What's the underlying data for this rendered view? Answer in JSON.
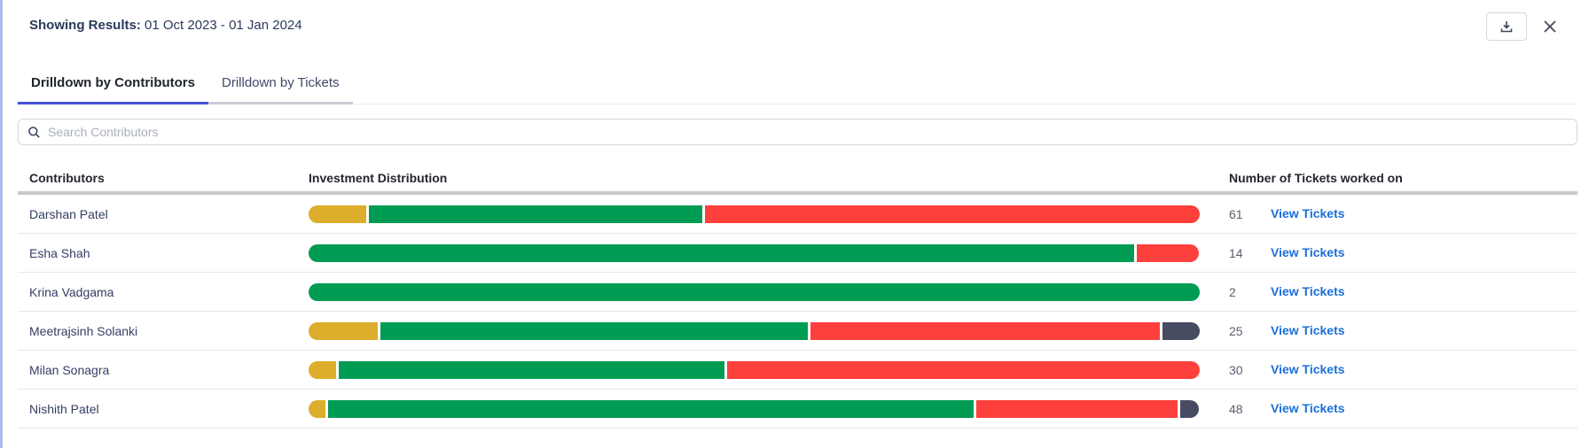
{
  "panel": {
    "results_label": "Showing Results:",
    "results_value": "01 Oct 2023 - 01 Jan 2024"
  },
  "icons": {
    "download": "tray-arrow-down",
    "close": "x",
    "search": "magnifier"
  },
  "tabs": [
    {
      "label": "Drilldown by Contributors",
      "active": true
    },
    {
      "label": "Drilldown by Tickets",
      "active": false
    }
  ],
  "search": {
    "placeholder": "Search Contributors",
    "value": ""
  },
  "table": {
    "headers": [
      "Contributors",
      "Investment Distribution",
      "Number of Tickets worked on"
    ],
    "view_tickets_label": "View Tickets",
    "rows": [
      {
        "name": "Darshan Patel",
        "tickets": "61",
        "segments": [
          {
            "color": "yellow",
            "pct": 6.5
          },
          {
            "color": "green",
            "pct": 37.4
          },
          {
            "color": "red",
            "pct": 55.5
          }
        ]
      },
      {
        "name": "Esha Shah",
        "tickets": "14",
        "segments": [
          {
            "color": "green",
            "pct": 92.6
          },
          {
            "color": "red",
            "pct": 7.0
          }
        ]
      },
      {
        "name": "Krina Vadgama",
        "tickets": "2",
        "segments": [
          {
            "color": "green",
            "pct": 100
          }
        ]
      },
      {
        "name": "Meetrajsinh Solanki",
        "tickets": "25",
        "segments": [
          {
            "color": "yellow",
            "pct": 7.8
          },
          {
            "color": "green",
            "pct": 47.9
          },
          {
            "color": "red",
            "pct": 39.2
          },
          {
            "color": "dark",
            "pct": 4.2
          }
        ]
      },
      {
        "name": "Milan Sonagra",
        "tickets": "30",
        "segments": [
          {
            "color": "yellow",
            "pct": 3.1
          },
          {
            "color": "green",
            "pct": 43.3
          },
          {
            "color": "red",
            "pct": 53.0
          }
        ]
      },
      {
        "name": "Nishith Patel",
        "tickets": "48",
        "segments": [
          {
            "color": "yellow",
            "pct": 1.9
          },
          {
            "color": "green",
            "pct": 72.4
          },
          {
            "color": "red",
            "pct": 22.6
          },
          {
            "color": "dark",
            "pct": 2.1
          }
        ]
      }
    ]
  },
  "colors": {
    "segments": {
      "yellow": "#DCAE2B",
      "green": "#009C53",
      "red": "#FD403C",
      "dark": "#474C63"
    },
    "accent_tab": "#4353D9",
    "link": "#1B6FD9",
    "panel_edge": "#AEBCEA"
  }
}
